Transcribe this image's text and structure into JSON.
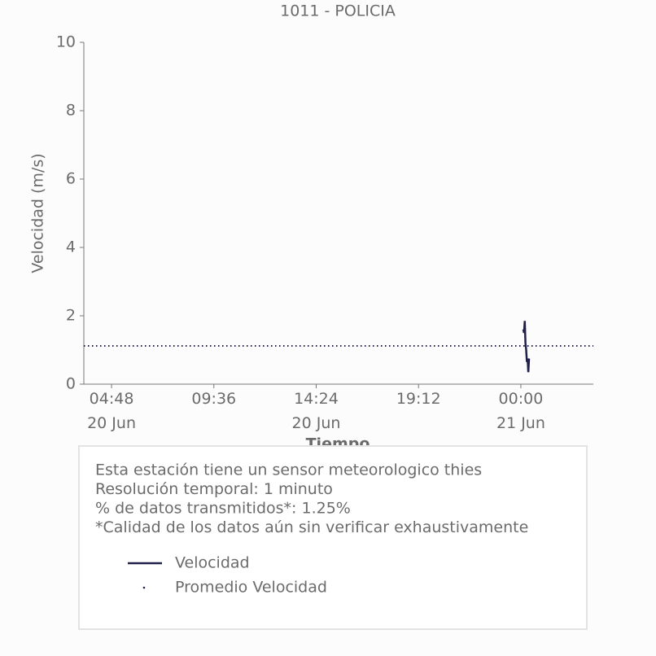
{
  "chart_data": {
    "type": "line",
    "title": "1011 - POLICIA",
    "y_label": "Velocidad (m/s)",
    "x_label": "Tiempo",
    "x": [
      "21 Jun 00:07",
      "21 Jun 00:09",
      "21 Jun 00:11",
      "21 Jun 00:13",
      "21 Jun 00:15",
      "21 Jun 00:17",
      "21 Jun 00:19",
      "21 Jun 00:21",
      "21 Jun 00:23"
    ],
    "series": [
      {
        "name": "Velocidad",
        "color": "#20204a",
        "values": [
          1.6,
          1.5,
          1.85,
          1.2,
          1.0,
          0.65,
          0.75,
          0.35,
          0.75
        ]
      }
    ],
    "reference_line": {
      "name": "Promedio Velocidad",
      "color": "#20204a",
      "value": 1.12
    },
    "xlim": [
      "20 Jun 03:30",
      "21 Jun 03:24"
    ],
    "xticks": [
      {
        "value": "20 Jun 04:48",
        "label": "04:48\n20 Jun"
      },
      {
        "value": "20 Jun 09:36",
        "label": "09:36"
      },
      {
        "value": "20 Jun 14:24",
        "label": "14:24\n20 Jun"
      },
      {
        "value": "20 Jun 19:12",
        "label": "19:12"
      },
      {
        "value": "21 Jun 00:00",
        "label": "00:00\n21 Jun"
      }
    ],
    "ylim": [
      0,
      10
    ],
    "yticks": [
      0,
      2,
      4,
      6,
      8,
      10
    ],
    "grid": false,
    "info_lines": [
      "Esta estación tiene un sensor meteorologico thies",
      "Resolución temporal: 1 minuto",
      "% de datos transmitidos*: 1.25%",
      "*Calidad de los datos aún sin verificar exhaustivamente"
    ]
  }
}
